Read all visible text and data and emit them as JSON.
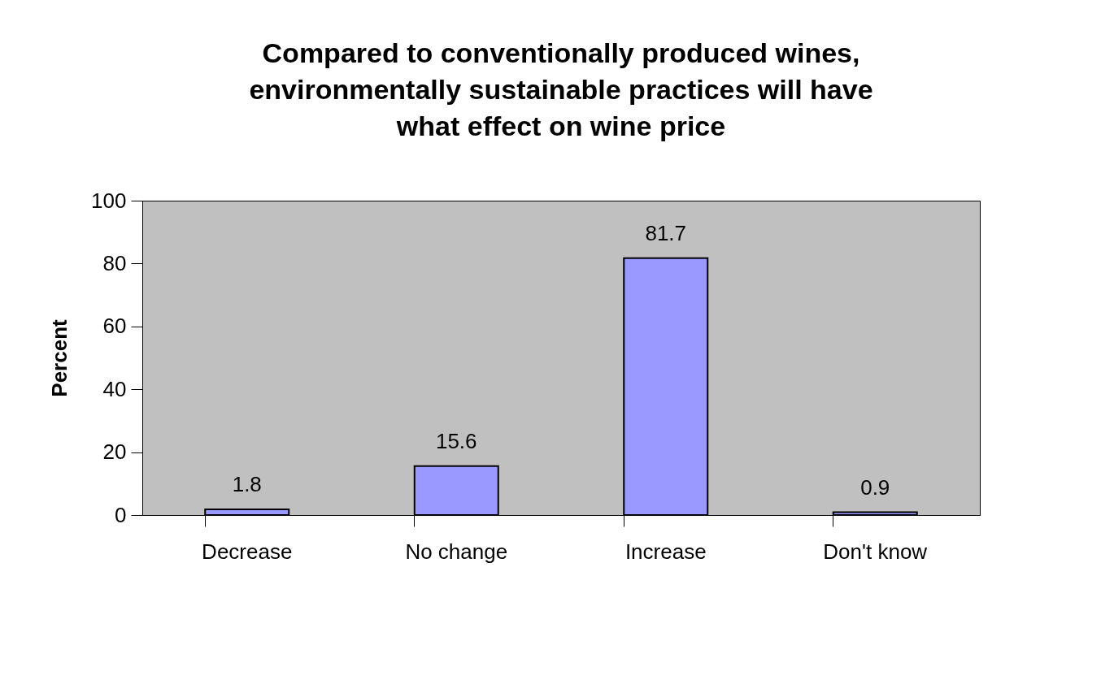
{
  "chart_data": {
    "type": "bar",
    "title": "Compared to conventionally produced wines,\nenvironmentally sustainable practices will have\nwhat effect on wine price",
    "ylabel": "Percent",
    "categories": [
      "Decrease",
      "No change",
      "Increase",
      "Don't know"
    ],
    "values": [
      1.8,
      15.6,
      81.7,
      0.9
    ],
    "color": "#9999ff",
    "ylim": [
      0,
      100
    ],
    "yticks": [
      0,
      20,
      40,
      60,
      80,
      100
    ],
    "grid": false,
    "data_labels": true
  }
}
